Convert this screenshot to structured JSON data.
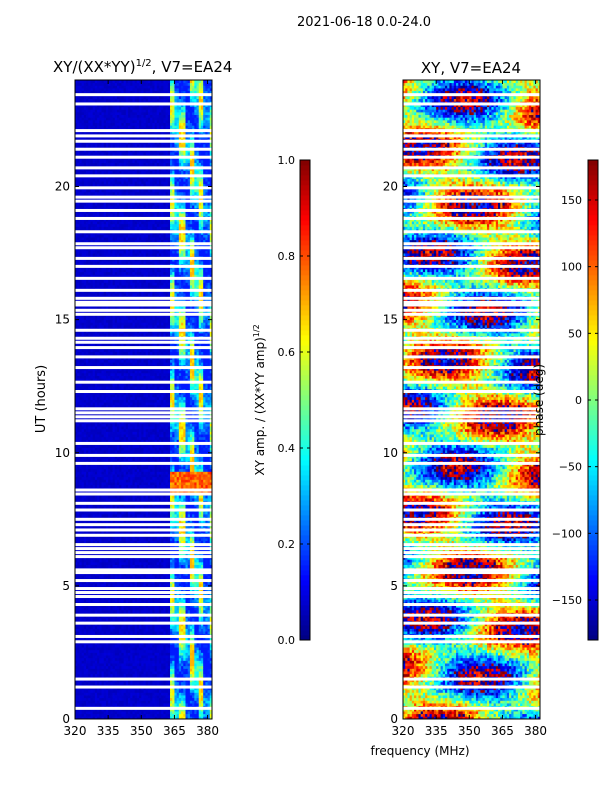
{
  "figure_title": "2021-06-18 0.0-24.0",
  "shared_xlabel": "frequency (MHz)",
  "colors": {
    "jet": [
      "#00007f",
      "#0000ff",
      "#007fff",
      "#00ffff",
      "#7fff7f",
      "#ffff00",
      "#ff7f00",
      "#ff0000",
      "#7f0000"
    ],
    "gap": "#ffffff"
  },
  "chart_data": [
    {
      "type": "heatmap",
      "title_prefix": "XY/(XX*YY)",
      "title_power": "1/2",
      "title_suffix": ", V7=EA24",
      "xlabel": "",
      "ylabel": "UT (hours)",
      "xlim": [
        320,
        382
      ],
      "ylim": [
        0,
        24
      ],
      "xticks": [
        320,
        335,
        350,
        365,
        380
      ],
      "yticks": [
        0,
        5,
        10,
        15,
        20
      ],
      "colorbar": {
        "label_prefix": "XY amp. / (XX*YY amp)",
        "label_power": "1/2",
        "range": [
          0.0,
          1.0
        ],
        "ticks": [
          0.0,
          0.2,
          0.4,
          0.6,
          0.8,
          1.0
        ],
        "tick_labels": [
          "0.0",
          "0.2",
          "0.4",
          "0.6",
          "0.8",
          "1.0"
        ]
      },
      "description_values": {
        "low_band_MHz": [
          320,
          363
        ],
        "low_band_level": 0.06,
        "high_band_MHz": [
          363,
          382
        ],
        "high_band_level_range": [
          0.15,
          0.7
        ],
        "hot_stripe_hours": [
          8.5,
          9.3
        ],
        "hot_stripe_level": 0.85
      }
    },
    {
      "type": "heatmap",
      "title": "XY, V7=EA24",
      "xlabel": "",
      "ylabel": "",
      "xlim": [
        320,
        382
      ],
      "ylim": [
        0,
        24
      ],
      "xticks": [
        320,
        335,
        350,
        365,
        380
      ],
      "yticks": [
        0,
        5,
        10,
        15,
        20
      ],
      "colorbar": {
        "label": "phase (deg)",
        "range": [
          -180,
          180
        ],
        "ticks": [
          -150,
          -100,
          -50,
          0,
          50,
          100,
          150
        ],
        "tick_labels": [
          "−150",
          "−100",
          "−50",
          "0",
          "50",
          "100",
          "150"
        ]
      }
    }
  ],
  "flagged_gaps_hours": [
    0.4,
    1.2,
    1.5,
    2.9,
    3.1,
    3.6,
    3.9,
    4.3,
    4.6,
    4.75,
    4.9,
    5.2,
    5.5,
    5.6,
    6.1,
    6.25,
    6.4,
    6.55,
    6.9,
    7.1,
    7.3,
    7.5,
    7.85,
    8.1,
    8.45,
    8.6,
    9.6,
    9.9,
    10.35,
    11.2,
    11.35,
    11.5,
    11.65,
    12.3,
    12.65,
    13.2,
    13.6,
    13.95,
    14.15,
    14.3,
    14.6,
    15.2,
    15.35,
    15.55,
    15.65,
    15.8,
    16.1,
    16.55,
    17.0,
    17.3,
    17.7,
    17.85,
    18.3,
    18.8,
    19.1,
    19.45,
    19.6,
    19.95,
    20.4,
    20.7,
    21.1,
    21.4,
    21.7,
    21.9,
    22.1,
    23.1,
    23.45
  ]
}
